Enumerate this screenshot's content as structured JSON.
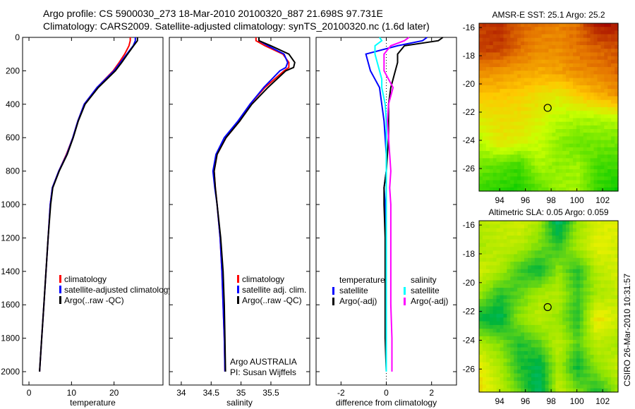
{
  "title_line1": "Argo profile: CS 5900030_273 18-Mar-2010 20100320_887 21.698S 97.731E",
  "title_line2": "Climatology: CARS2009. Satellite-adjusted climatology: synTS_20100320.nc (1.6d later)",
  "side_label": "CSIRO 26-Mar-2010 10:31:57",
  "colors": {
    "climatology": "#ff0000",
    "satellite": "#0000ff",
    "argo": "#000000",
    "sal_satellite": "#00ffff",
    "sal_argo": "#ff00ff"
  },
  "chart_data": [
    {
      "type": "line",
      "xlabel": "temperature",
      "ylabel": "",
      "xlim": [
        -1.5,
        31.5
      ],
      "ylim": [
        0,
        2080
      ],
      "y_inverted": true,
      "xticks": [
        0,
        10,
        20
      ],
      "yticks": [
        0,
        200,
        400,
        600,
        800,
        1000,
        1200,
        1400,
        1600,
        1800,
        2000
      ],
      "legend": [
        "climatology",
        "satellite-adjusted climatology",
        "Argo(..raw -QC)"
      ],
      "legend_position": "lower-right",
      "depth": [
        0,
        20,
        50,
        100,
        150,
        200,
        300,
        400,
        500,
        600,
        700,
        800,
        900,
        1000,
        1200,
        1400,
        1600,
        1800,
        2000
      ],
      "series": [
        {
          "name": "climatology",
          "values": [
            23.8,
            23.8,
            23.5,
            22.5,
            21.2,
            19.8,
            16,
            13,
            11.5,
            10.3,
            8.8,
            7,
            5.5,
            5,
            4.5,
            4,
            3.5,
            3,
            2.5
          ]
        },
        {
          "name": "satellite-adjusted climatology",
          "values": [
            25.0,
            25.0,
            24.5,
            23,
            21.5,
            20,
            16,
            13,
            11.5,
            10.3,
            8.9,
            7,
            5.5,
            5,
            4.5,
            4,
            3.5,
            3,
            2.5
          ]
        },
        {
          "name": "Argo(..raw -QC)",
          "values": [
            25.5,
            25.5,
            24.6,
            23.2,
            21.8,
            20.3,
            16.3,
            13.2,
            11.6,
            10.4,
            9,
            7.1,
            5.6,
            5.1,
            4.5,
            4,
            3.5,
            3,
            2.5
          ]
        }
      ]
    },
    {
      "type": "line",
      "xlabel": "salinity",
      "xlim": [
        33.8,
        36.15
      ],
      "ylim": [
        0,
        2080
      ],
      "y_inverted": true,
      "xticks": [
        34,
        34.5,
        35,
        35.5
      ],
      "legend": [
        "climatology",
        "satellite adj. clim.",
        "Argo(..raw -QC)"
      ],
      "legend_position": "lower-right",
      "annotation": [
        "Argo AUSTRALIA",
        "PI: Susan Wijffels"
      ],
      "depth": [
        0,
        20,
        50,
        100,
        150,
        180,
        200,
        300,
        400,
        500,
        600,
        700,
        800,
        900,
        1000,
        1200,
        1400,
        1600,
        1800,
        2000
      ],
      "series": [
        {
          "name": "climatology",
          "values": [
            35.25,
            35.25,
            35.4,
            35.7,
            35.8,
            35.8,
            35.72,
            35.4,
            35.15,
            34.98,
            34.75,
            34.6,
            34.55,
            34.57,
            34.6,
            34.65,
            34.68,
            34.7,
            34.72,
            34.73
          ]
        },
        {
          "name": "satellite adj. clim.",
          "values": [
            35.3,
            35.3,
            35.45,
            35.72,
            35.78,
            35.75,
            35.65,
            35.38,
            35.15,
            34.95,
            34.72,
            34.58,
            34.53,
            34.56,
            34.6,
            34.65,
            34.68,
            34.7,
            34.72,
            34.73
          ]
        },
        {
          "name": "Argo(..raw -QC)",
          "values": [
            35.3,
            35.3,
            35.5,
            35.8,
            35.9,
            35.88,
            35.75,
            35.45,
            35.18,
            34.98,
            34.75,
            34.6,
            34.55,
            34.57,
            34.6,
            34.66,
            34.7,
            34.72,
            34.73,
            34.74
          ]
        }
      ]
    },
    {
      "type": "line",
      "xlabel": "difference from climatology",
      "xlim": [
        -3.1,
        3.1
      ],
      "ylim": [
        0,
        2080
      ],
      "y_inverted": true,
      "xticks": [
        -2,
        0,
        2
      ],
      "legend_headers": [
        "temperature",
        "salinity"
      ],
      "legend": [
        "satellite",
        "Argo(-adj)",
        "satellite",
        "Argo(-adj)"
      ],
      "legend_position": "lower-center",
      "depth": [
        0,
        20,
        50,
        100,
        150,
        200,
        250,
        300,
        400,
        500,
        600,
        700,
        800,
        900,
        1000,
        1200,
        1400,
        1600,
        1800,
        2000
      ],
      "series": [
        {
          "name": "temperature satellite",
          "values": [
            1.8,
            1.6,
            0.5,
            -0.9,
            -0.8,
            -0.7,
            -0.5,
            -0.3,
            -0.2,
            -0.1,
            -0.05,
            0,
            0,
            -0.1,
            -0.05,
            0,
            0,
            0,
            0,
            0
          ]
        },
        {
          "name": "temperature Argo(-adj)",
          "values": [
            2.5,
            2.3,
            0.8,
            0.5,
            0.5,
            0.4,
            0.3,
            0.2,
            0.1,
            0.1,
            0.1,
            0.05,
            0,
            -0.1,
            -0.1,
            -0.05,
            -0.05,
            -0.05,
            -0.05,
            0
          ]
        },
        {
          "name": "salinity satellite",
          "values": [
            -0.3,
            -0.2,
            -0.5,
            -0.5,
            -0.4,
            -0.3,
            -0.2,
            -0.2,
            -0.05,
            0,
            0,
            0,
            0,
            0,
            0,
            0,
            0,
            0,
            0,
            0
          ]
        },
        {
          "name": "salinity Argo(-adj)",
          "values": [
            1.0,
            0.8,
            0.2,
            -0.1,
            -0.1,
            -0.1,
            0.1,
            0.3,
            0.1,
            0.05,
            0.1,
            0.15,
            0.2,
            0.15,
            0.2,
            0.2,
            0.2,
            0.2,
            0.25,
            0.25
          ]
        }
      ]
    },
    {
      "type": "heatmap",
      "title": "AMSR-E SST: 25.1 Argo: 25.2",
      "xlim": [
        92.4,
        103.2
      ],
      "ylim": [
        -27.6,
        -15.7
      ],
      "xticks": [
        94,
        96,
        98,
        100,
        102
      ],
      "yticks": [
        -16,
        -18,
        -20,
        -22,
        -24,
        -26
      ],
      "marker": [
        97.731,
        -21.698
      ],
      "vrange": [
        23.5,
        27.5
      ],
      "grid": [
        [
          27.0,
          27.1,
          26.7,
          26.5,
          26.4,
          26.6,
          27.3,
          27.3
        ],
        [
          27.0,
          27.0,
          26.6,
          26.3,
          26.3,
          26.5,
          26.7,
          26.8
        ],
        [
          26.3,
          26.2,
          26.1,
          26.0,
          26.1,
          26.3,
          26.4,
          26.6
        ],
        [
          25.7,
          25.7,
          25.6,
          25.4,
          25.2,
          25.6,
          25.9,
          26.2
        ],
        [
          25.2,
          25.4,
          25.4,
          25.1,
          24.8,
          24.7,
          24.7,
          24.8
        ],
        [
          24.8,
          25.3,
          25.1,
          24.9,
          24.5,
          24.2,
          24.3,
          24.3
        ],
        [
          24.3,
          24.1,
          23.9,
          24.7,
          24.5,
          24.6,
          24.0,
          23.9
        ],
        [
          23.9,
          23.8,
          23.7,
          24.1,
          24.6,
          24.6,
          23.9,
          23.6
        ]
      ]
    },
    {
      "type": "heatmap",
      "title": "Altimetric SLA: 0.05 Argo: 0.059",
      "xlim": [
        92.4,
        103.2
      ],
      "ylim": [
        -27.6,
        -15.7
      ],
      "xticks": [
        94,
        96,
        98,
        100,
        102
      ],
      "yticks": [
        -16,
        -18,
        -20,
        -22,
        -24,
        -26
      ],
      "marker": [
        97.731,
        -21.698
      ],
      "vrange": [
        -0.2,
        0.2
      ],
      "grid": [
        [
          0.05,
          0.06,
          0.08,
          0.04,
          -0.12,
          0.02,
          0.08,
          0.1
        ],
        [
          0.04,
          0.06,
          0.05,
          0.0,
          -0.05,
          0.04,
          0.1,
          0.08
        ],
        [
          0.08,
          0.04,
          -0.04,
          -0.08,
          0.02,
          -0.06,
          0.05,
          0.08
        ],
        [
          0.02,
          -0.06,
          -0.02,
          0.04,
          0.05,
          -0.04,
          0.04,
          0.06
        ],
        [
          -0.08,
          -0.1,
          0.02,
          0.06,
          0.02,
          -0.06,
          0.12,
          0.08
        ],
        [
          0.04,
          0.0,
          -0.06,
          -0.02,
          0.06,
          -0.02,
          0.06,
          0.04
        ],
        [
          0.1,
          0.04,
          -0.06,
          -0.1,
          0.04,
          -0.08,
          0.02,
          0.06
        ],
        [
          0.12,
          0.06,
          -0.02,
          -0.12,
          0.06,
          0.0,
          -0.06,
          0.02
        ]
      ]
    }
  ]
}
